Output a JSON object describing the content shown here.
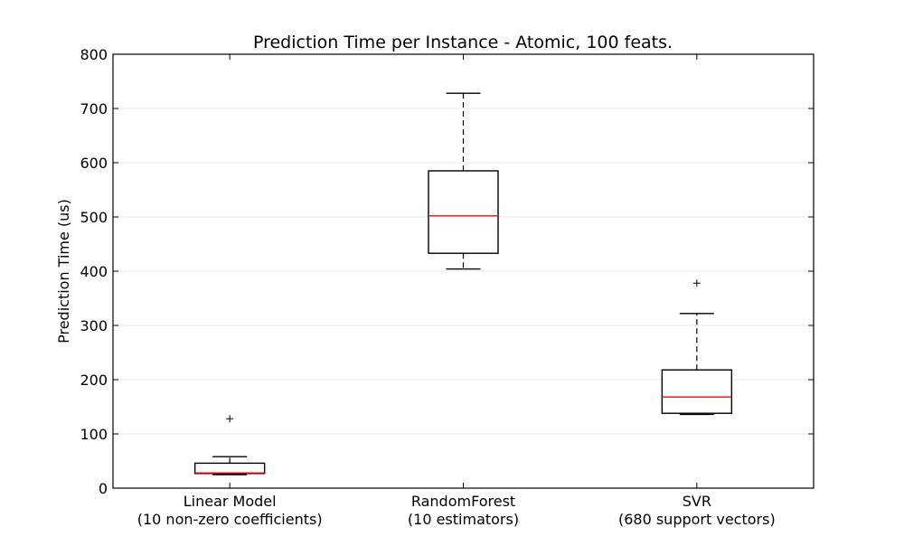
{
  "chart_data": {
    "type": "box",
    "title": "Prediction Time per Instance - Atomic, 100 feats.",
    "xlabel": "",
    "ylabel": "Prediction Time (us)",
    "ylim": [
      0,
      800
    ],
    "yticks": [
      0,
      100,
      200,
      300,
      400,
      500,
      600,
      700,
      800
    ],
    "grid": true,
    "categories": [
      {
        "line1": "Linear Model",
        "line2": "(10 non-zero coefficients)"
      },
      {
        "line1": "RandomForest",
        "line2": "(10 estimators)"
      },
      {
        "line1": "SVR",
        "line2": "(680 support vectors)"
      }
    ],
    "boxes": [
      {
        "whisker_low": 25,
        "q1": 27,
        "median": 28,
        "q3": 46,
        "whisker_high": 58,
        "outliers": [
          128
        ]
      },
      {
        "whisker_low": 404,
        "q1": 433,
        "median": 502,
        "q3": 585,
        "whisker_high": 728,
        "outliers": []
      },
      {
        "whisker_low": 136,
        "q1": 138,
        "median": 168,
        "q3": 218,
        "whisker_high": 322,
        "outliers": [
          378
        ]
      }
    ],
    "colors": {
      "box": "#000000",
      "median": "#ff0000",
      "grid": "#ebebeb"
    }
  }
}
